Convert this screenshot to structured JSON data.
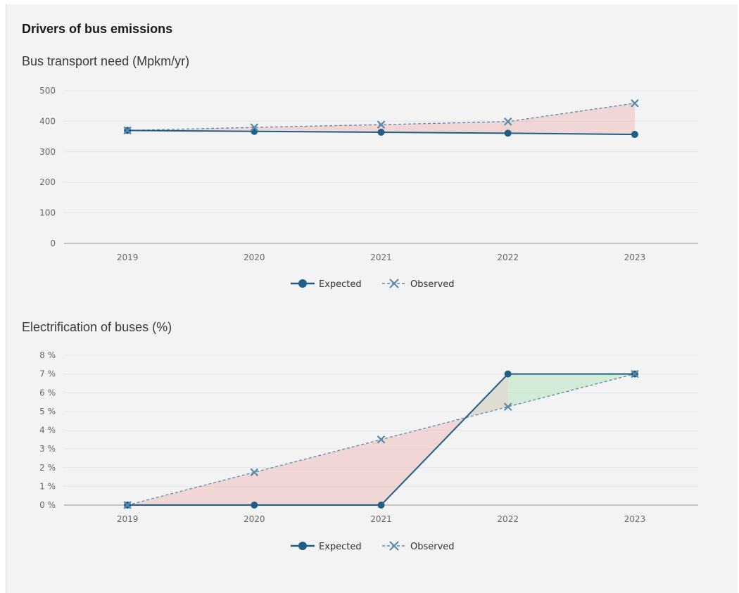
{
  "page": {
    "heading": "Drivers of bus emissions"
  },
  "colors": {
    "expected": "#1f5f85",
    "observed": "#5b88ad",
    "over_fill": "rgba(238,170,170,0.40)",
    "under_fill": "rgba(160,222,170,0.40)",
    "mixed_fill": "rgba(200,195,170,0.45)",
    "grid": "#e2e4ee",
    "axis": "#c4c4c4"
  },
  "chart_data": [
    {
      "type": "line",
      "title": "Bus transport need (Mpkm/yr)",
      "categories": [
        "2019",
        "2020",
        "2021",
        "2022",
        "2023"
      ],
      "series": [
        {
          "name": "Expected",
          "marker": "circle",
          "values": [
            370,
            367,
            364,
            361,
            357
          ]
        },
        {
          "name": "Observed",
          "marker": "x",
          "dashed": true,
          "values": [
            370,
            380,
            389,
            399,
            459
          ]
        }
      ],
      "ylim": [
        0,
        500
      ],
      "yticks": [
        "0",
        "100",
        "200",
        "300",
        "400",
        "500"
      ],
      "ytick_values": [
        0,
        100,
        200,
        300,
        400,
        500
      ],
      "grid": true,
      "legend": "bottom-center"
    },
    {
      "type": "line",
      "title": "Electrification of buses (%)",
      "categories": [
        "2019",
        "2020",
        "2021",
        "2022",
        "2023"
      ],
      "series": [
        {
          "name": "Expected",
          "marker": "circle",
          "values": [
            0,
            0,
            0,
            7,
            7
          ]
        },
        {
          "name": "Observed",
          "marker": "x",
          "dashed": true,
          "values": [
            0,
            1.75,
            3.5,
            5.25,
            7
          ]
        }
      ],
      "ylim": [
        0,
        8
      ],
      "yticks": [
        "0 %",
        "1 %",
        "2 %",
        "3 %",
        "4 %",
        "5 %",
        "6 %",
        "7 %",
        "8 %"
      ],
      "ytick_values": [
        0,
        1,
        2,
        3,
        4,
        5,
        6,
        7,
        8
      ],
      "grid": true,
      "legend": "bottom-center"
    }
  ]
}
